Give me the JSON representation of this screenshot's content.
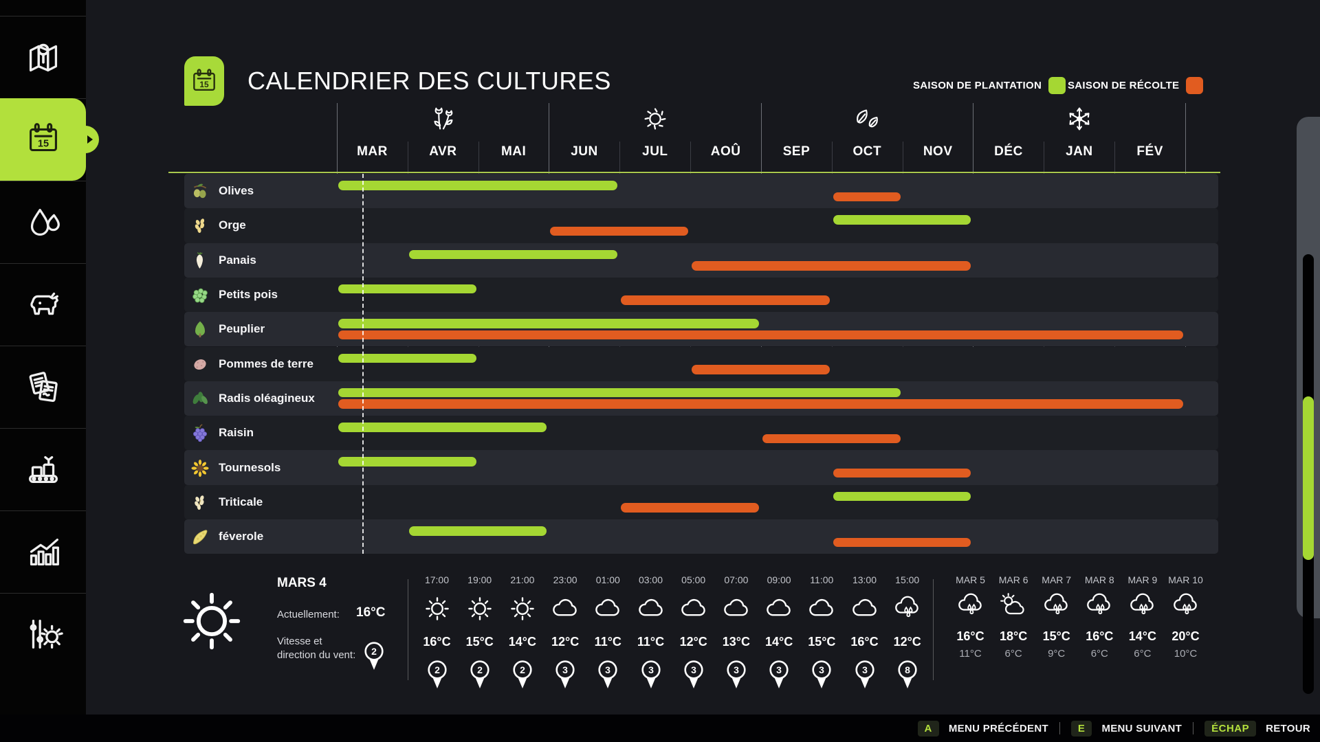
{
  "sidebar": {
    "calendar_day": "15",
    "items": [
      {
        "icon": "map-icon",
        "active": false
      },
      {
        "icon": "calendar-icon",
        "active": true
      },
      {
        "icon": "water-icon",
        "active": false
      },
      {
        "icon": "animals-icon",
        "active": false
      },
      {
        "icon": "contracts-icon",
        "active": false
      },
      {
        "icon": "production-icon",
        "active": false
      },
      {
        "icon": "statistics-icon",
        "active": false
      },
      {
        "icon": "settings-icon",
        "active": false
      }
    ]
  },
  "header": {
    "title": "CALENDRIER DES CULTURES",
    "badge_day": "15"
  },
  "legend": {
    "planting_label": "SAISON DE PLANTATION",
    "harvest_label": "SAISON DE RÉCOLTE",
    "planting_color": "#a5d733",
    "harvest_color": "#e15c20"
  },
  "chart_data": {
    "type": "gantt",
    "months": [
      "MAR",
      "AVR",
      "MAI",
      "JUN",
      "JUL",
      "AOÛ",
      "SEP",
      "OCT",
      "NOV",
      "DÉC",
      "JAN",
      "FÉV"
    ],
    "season_icons": [
      {
        "name": "spring-flowers-icon",
        "month": "AVR"
      },
      {
        "name": "summer-sun-icon",
        "month": "JUL"
      },
      {
        "name": "autumn-leaves-icon",
        "month": "OCT"
      },
      {
        "name": "winter-snowflake-icon",
        "month": "JAN"
      }
    ],
    "today_line": {
      "month": "MAR",
      "fraction": 0.36
    },
    "crops": [
      {
        "name": "Olives",
        "icon": "olives-icon",
        "planting": [
          "MAR",
          "JUN"
        ],
        "harvest": [
          "OCT",
          "OCT"
        ]
      },
      {
        "name": "Orge",
        "icon": "barley-icon",
        "planting": [
          "OCT",
          "NOV"
        ],
        "harvest": [
          "JUN",
          "JUL"
        ]
      },
      {
        "name": "Panais",
        "icon": "parsnip-icon",
        "planting": [
          "AVR",
          "JUN"
        ],
        "harvest": [
          "AOÛ",
          "NOV"
        ]
      },
      {
        "name": "Petits pois",
        "icon": "peas-icon",
        "planting": [
          "MAR",
          "AVR"
        ],
        "harvest": [
          "JUL",
          "SEP"
        ]
      },
      {
        "name": "Peuplier",
        "icon": "poplar-icon",
        "planting": [
          "MAR",
          "AOÛ"
        ],
        "harvest": [
          "MAR",
          "FÉV"
        ]
      },
      {
        "name": "Pommes de terre",
        "icon": "potato-icon",
        "planting": [
          "MAR",
          "AVR"
        ],
        "harvest": [
          "AOÛ",
          "SEP"
        ]
      },
      {
        "name": "Radis oléagineux",
        "icon": "oilseed-radish-icon",
        "planting": [
          "MAR",
          "OCT"
        ],
        "harvest": [
          "MAR",
          "FÉV"
        ]
      },
      {
        "name": "Raisin",
        "icon": "grapes-icon",
        "planting": [
          "MAR",
          "MAI"
        ],
        "harvest": [
          "SEP",
          "OCT"
        ]
      },
      {
        "name": "Tournesols",
        "icon": "sunflower-icon",
        "planting": [
          "MAR",
          "AVR"
        ],
        "harvest": [
          "OCT",
          "NOV"
        ]
      },
      {
        "name": "Triticale",
        "icon": "triticale-icon",
        "planting": [
          "OCT",
          "NOV"
        ],
        "harvest": [
          "JUL",
          "AOÛ"
        ]
      },
      {
        "name": "féverole",
        "icon": "field-bean-icon",
        "planting": [
          "AVR",
          "MAI"
        ],
        "harvest": [
          "OCT",
          "NOV"
        ]
      }
    ]
  },
  "weather": {
    "current": {
      "date": "MARS 4",
      "icon": "sun",
      "now_label": "Actuellement:",
      "temperature": "16°C",
      "wind_label": "Vitesse et direction du vent:",
      "wind_value": "2"
    },
    "hourly": [
      {
        "time": "17:00",
        "icon": "sun",
        "temp": "16°C",
        "wind": "2"
      },
      {
        "time": "19:00",
        "icon": "sun",
        "temp": "15°C",
        "wind": "2"
      },
      {
        "time": "21:00",
        "icon": "sun",
        "temp": "14°C",
        "wind": "2"
      },
      {
        "time": "23:00",
        "icon": "cloud",
        "temp": "12°C",
        "wind": "3"
      },
      {
        "time": "01:00",
        "icon": "cloud",
        "temp": "11°C",
        "wind": "3"
      },
      {
        "time": "03:00",
        "icon": "cloud",
        "temp": "11°C",
        "wind": "3"
      },
      {
        "time": "05:00",
        "icon": "cloud",
        "temp": "12°C",
        "wind": "3"
      },
      {
        "time": "07:00",
        "icon": "cloud",
        "temp": "13°C",
        "wind": "3"
      },
      {
        "time": "09:00",
        "icon": "cloud",
        "temp": "14°C",
        "wind": "3"
      },
      {
        "time": "11:00",
        "icon": "cloud",
        "temp": "15°C",
        "wind": "3"
      },
      {
        "time": "13:00",
        "icon": "cloud",
        "temp": "16°C",
        "wind": "3"
      },
      {
        "time": "15:00",
        "icon": "rain",
        "temp": "12°C",
        "wind": "8"
      }
    ],
    "daily": [
      {
        "date": "MAR 5",
        "icon": "rain",
        "high": "16°C",
        "low": "11°C"
      },
      {
        "date": "MAR 6",
        "icon": "sun-cloud",
        "high": "18°C",
        "low": "6°C"
      },
      {
        "date": "MAR 7",
        "icon": "rain",
        "high": "15°C",
        "low": "9°C"
      },
      {
        "date": "MAR 8",
        "icon": "rain",
        "high": "16°C",
        "low": "6°C"
      },
      {
        "date": "MAR 9",
        "icon": "rain",
        "high": "14°C",
        "low": "6°C"
      },
      {
        "date": "MAR 10",
        "icon": "rain",
        "high": "20°C",
        "low": "10°C"
      }
    ]
  },
  "footer": {
    "shortcuts": [
      {
        "key": "A",
        "label": "MENU PRÉCÉDENT"
      },
      {
        "key": "E",
        "label": "MENU SUIVANT"
      },
      {
        "key": "ÉCHAP",
        "label": "RETOUR"
      }
    ]
  }
}
